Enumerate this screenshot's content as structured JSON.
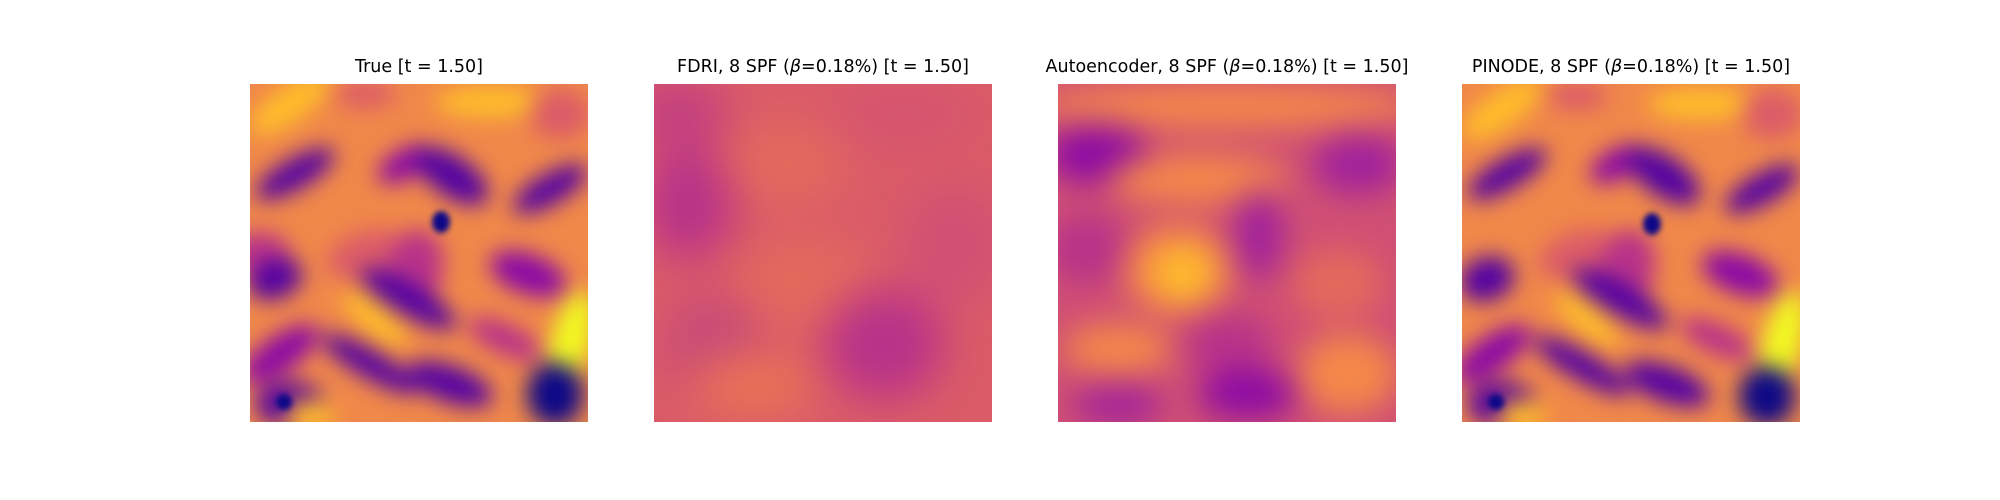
{
  "figure": {
    "colormap": "plasma",
    "colormap_stops": [
      "#0d0887",
      "#5302a3",
      "#8b0aa5",
      "#b83289",
      "#db5c68",
      "#f48849",
      "#febd2a",
      "#f0f921"
    ]
  },
  "chart_data": [
    {
      "type": "heatmap",
      "title": "True [t = 1.50]",
      "axis": "off",
      "description": "Turbulent vorticity field: dark purple diagonal vortices on orange background, a small dark vortex core near the center-right, yellow streaks at top and right edges."
    },
    {
      "type": "heatmap",
      "title": "FDRI, 8 SPF (β=0.18%) [t = 1.50]",
      "axis": "off",
      "description": "Very smooth field: mostly salmon/pink-red with faint magenta blotches at the left and lower-right and slightly orange areas."
    },
    {
      "type": "heatmap",
      "title": "Autoencoder, 8 SPF (β=0.18%) [t = 1.50]",
      "axis": "off",
      "description": "Blurred field: orange bands at top and center-left with a yellow blob near the center, magenta/purple patches elsewhere."
    },
    {
      "type": "heatmap",
      "title": "PINODE, 8 SPF (β=0.18%) [t = 1.50]",
      "axis": "off",
      "description": "Reconstruction closely matching the true field: same dark purple diagonal vortices, central vortex core, and yellow streaks."
    }
  ]
}
